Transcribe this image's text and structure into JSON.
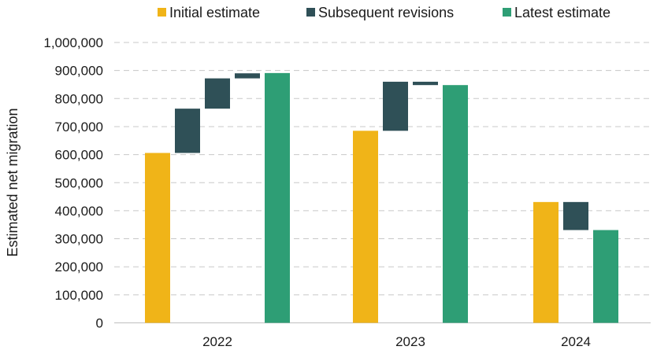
{
  "chart_data": {
    "type": "bar",
    "subtype": "waterfall",
    "ylabel": "Estimated net migration",
    "xlabel": "",
    "ylim": [
      0,
      1000000
    ],
    "y_ticks": [
      "0",
      "100,000",
      "200,000",
      "300,000",
      "400,000",
      "500,000",
      "600,000",
      "700,000",
      "800,000",
      "900,000",
      "1,000,000"
    ],
    "grid": true,
    "legend_position": "top",
    "legend": [
      {
        "name": "Initial estimate",
        "color": "#f0b418"
      },
      {
        "name": "Subsequent revisions",
        "color": "#2f5057"
      },
      {
        "name": "Latest estimate",
        "color": "#2e9e75"
      }
    ],
    "groups": [
      {
        "year": "2022",
        "initial": 606000,
        "revisions": [
          [
            606000,
            764000
          ],
          [
            764000,
            872000
          ],
          [
            872000,
            890000
          ]
        ],
        "latest": 891000
      },
      {
        "year": "2023",
        "initial": 685000,
        "revisions": [
          [
            685000,
            860000
          ],
          [
            848000,
            860000
          ]
        ],
        "latest": 848000
      },
      {
        "year": "2024",
        "initial": 431000,
        "revisions": [
          [
            331000,
            431000
          ]
        ],
        "latest": 331000
      }
    ]
  }
}
